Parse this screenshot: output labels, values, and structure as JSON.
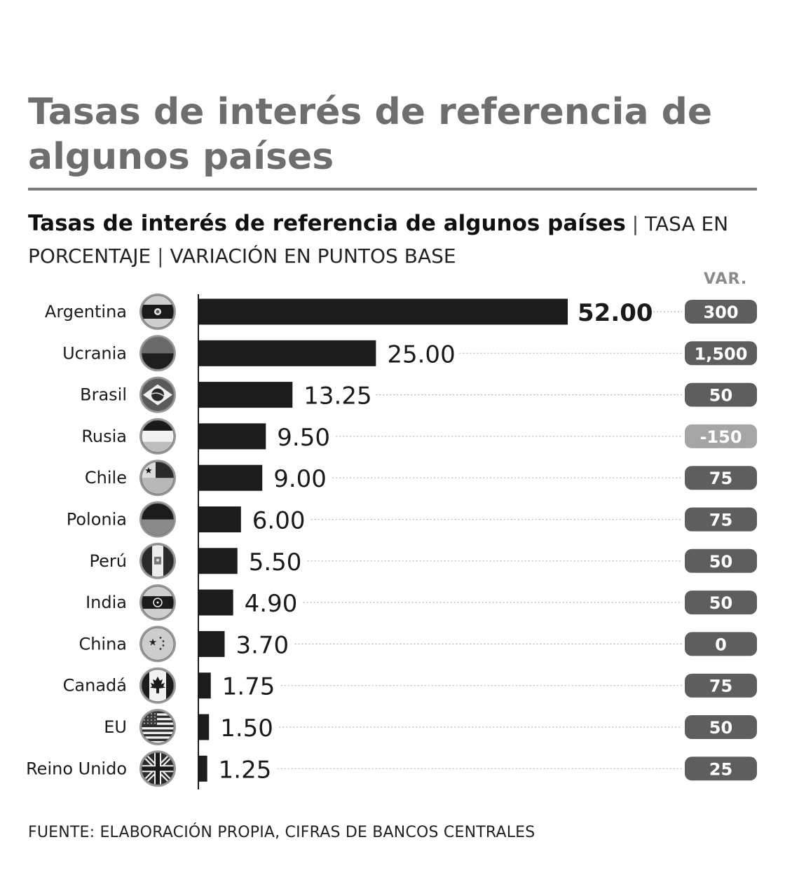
{
  "title": "Tasas de interés de referencia de algunos países",
  "subtitle_bold": "Tasas de interés de referencia de algunos países",
  "subtitle_sep1": "|",
  "subtitle_rest1": "TASA EN PORCENTAJE",
  "subtitle_sep2": "|",
  "subtitle_rest2": "VARIACIÓN EN PUNTOS BASE",
  "var_header": "VAR.",
  "source": "FUENTE: ELABORACIÓN PROPIA, CIFRAS DE BANCOS CENTRALES",
  "colors": {
    "bar": "#1c1c1c",
    "badge": "#5e5e5e",
    "badge_negative": "#a5a5a5",
    "title": "#6e6e6e"
  },
  "chart_data": {
    "type": "bar",
    "orientation": "horizontal",
    "categories": [
      "Argentina",
      "Ucrania",
      "Brasil",
      "Rusia",
      "Chile",
      "Polonia",
      "Perú",
      "India",
      "China",
      "Canadá",
      "EU",
      "Reino Unido"
    ],
    "values": [
      52.0,
      25.0,
      13.25,
      9.5,
      9.0,
      6.0,
      5.5,
      4.9,
      3.7,
      1.75,
      1.5,
      1.25
    ],
    "value_labels": [
      "52.00",
      "25.00",
      "13.25",
      "9.50",
      "9.00",
      "6.00",
      "5.50",
      "4.90",
      "3.70",
      "1.75",
      "1.50",
      "1.25"
    ],
    "variation_labels": [
      "300",
      "1,500",
      "50",
      "-150",
      "75",
      "75",
      "50",
      "50",
      "0",
      "75",
      "50",
      "25"
    ],
    "variation_values": [
      300,
      1500,
      50,
      -150,
      75,
      75,
      50,
      50,
      0,
      75,
      50,
      25
    ],
    "flag_icons": [
      "argentina-flag-icon",
      "ukraine-flag-icon",
      "brazil-flag-icon",
      "russia-flag-icon",
      "chile-flag-icon",
      "poland-flag-icon",
      "peru-flag-icon",
      "india-flag-icon",
      "china-flag-icon",
      "canada-flag-icon",
      "usa-flag-icon",
      "uk-flag-icon"
    ],
    "xlim": [
      0,
      52
    ]
  }
}
